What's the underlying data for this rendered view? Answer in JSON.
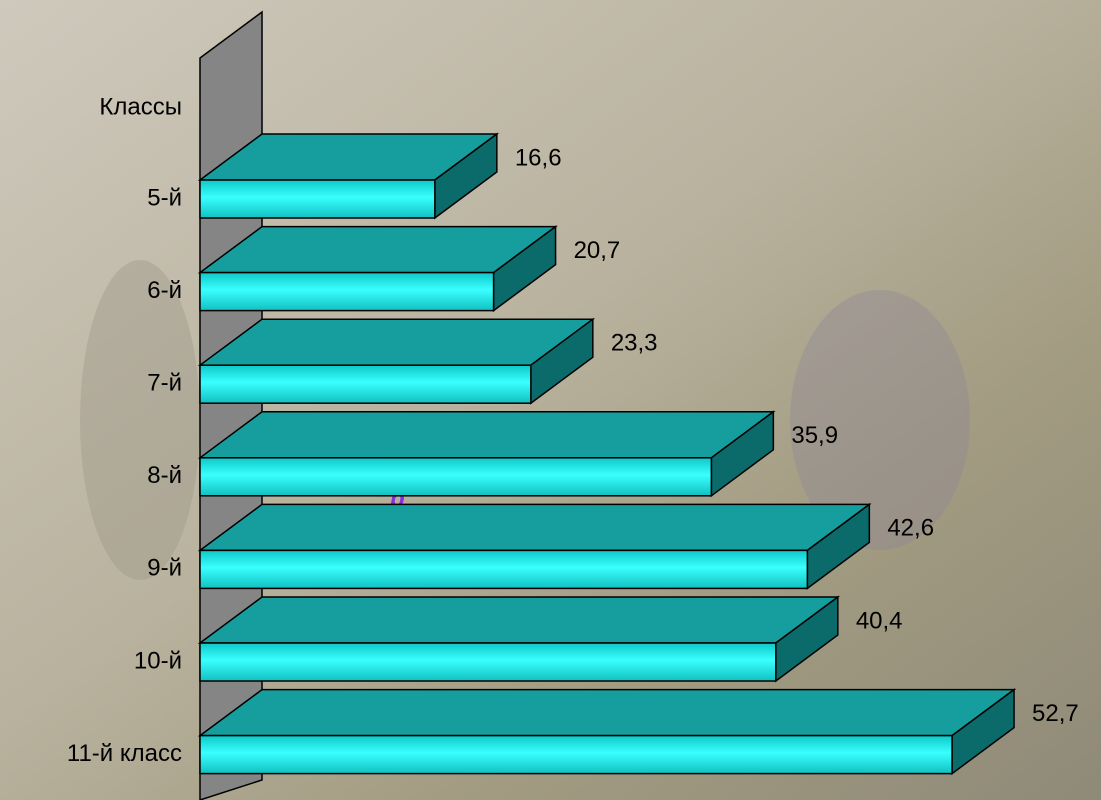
{
  "chart_data": {
    "type": "bar3d-horizontal",
    "category_axis_title": "Классы",
    "annotation": "р",
    "categories": [
      "5-й",
      "6-й",
      "7-й",
      "8-й",
      "9-й",
      "10-й",
      "11-й класс"
    ],
    "values": [
      16.6,
      20.7,
      23.3,
      35.9,
      42.6,
      40.4,
      52.7
    ],
    "value_labels": [
      "16,6",
      "20,7",
      "23,3",
      "35,9",
      "42,6",
      "40,4",
      "52,7"
    ],
    "color": "#20f4f4",
    "xlim": [
      0,
      55
    ]
  }
}
